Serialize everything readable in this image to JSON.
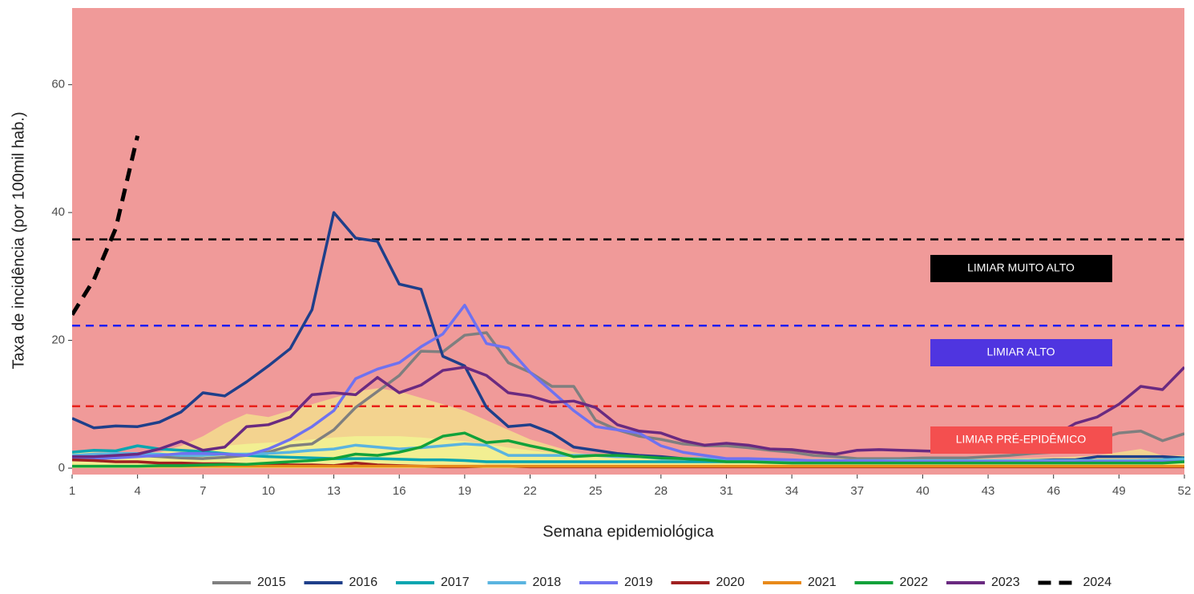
{
  "chart_data": {
    "type": "line",
    "xlabel": "Semana epidemiológica",
    "ylabel": "Taxa de incidência (por 100mil hab.)",
    "xlim": [
      1,
      52
    ],
    "ylim": [
      -1,
      72
    ],
    "xticks": [
      1,
      4,
      7,
      10,
      13,
      16,
      19,
      22,
      25,
      28,
      31,
      34,
      37,
      40,
      43,
      46,
      49,
      52
    ],
    "yticks": [
      0,
      20,
      40,
      60
    ],
    "background": "#f09a99",
    "x": [
      1,
      2,
      3,
      4,
      5,
      6,
      7,
      8,
      9,
      10,
      11,
      12,
      13,
      14,
      15,
      16,
      17,
      18,
      19,
      20,
      21,
      22,
      23,
      24,
      25,
      26,
      27,
      28,
      29,
      30,
      31,
      32,
      33,
      34,
      35,
      36,
      37,
      38,
      39,
      40,
      41,
      42,
      43,
      44,
      45,
      46,
      47,
      48,
      49,
      50,
      51,
      52
    ],
    "areas": [
      {
        "color": "#f3d38f",
        "values": [
          2,
          2,
          2,
          2.2,
          2.5,
          3.5,
          5,
          7,
          8.5,
          8,
          9,
          10,
          11,
          12,
          12.5,
          12,
          11,
          10,
          9,
          7.5,
          6,
          4.5,
          3.5,
          2.5,
          2,
          1.8,
          1.6,
          1.5,
          1.5,
          1.5,
          1.5,
          1.5,
          1.5,
          1.5,
          1.5,
          1.5,
          1.5,
          1.5,
          1.5,
          1.5,
          1.5,
          1.5,
          1.5,
          1.5,
          1.6,
          1.7,
          1.8,
          2,
          2.5,
          3,
          2,
          2
        ]
      },
      {
        "color": "#f2ef92",
        "values": [
          2.5,
          2.5,
          2.5,
          2.5,
          2.5,
          2.8,
          3,
          3.5,
          3.8,
          4,
          4.2,
          4.5,
          4.8,
          5,
          5,
          5,
          4.8,
          4.5,
          4.2,
          3.8,
          3.2,
          2.8,
          2.4,
          2,
          1.8,
          1.6,
          1.5,
          1.4,
          1.3,
          1.2,
          1.2,
          1.2,
          1.2,
          1.2,
          1.2,
          1.2,
          1.2,
          1.2,
          1.2,
          1.2,
          1.2,
          1.2,
          1.2,
          1.2,
          1.2,
          1.2,
          1.2,
          1.2,
          1.2,
          1.2,
          1.2,
          1.2
        ]
      }
    ],
    "thresholds": [
      {
        "label": "LIMIAR MUITO ALTO",
        "value": 35.8,
        "color": "#000000",
        "box_color": "#000000"
      },
      {
        "label": "LIMIAR ALTO",
        "value": 22.3,
        "color": "#1d1df2",
        "box_color": "#4f35e0"
      },
      {
        "label": "LIMIAR PRÉ-EPIDÊMICO",
        "value": 9.7,
        "color": "#e8201a",
        "box_color": "#f44f4f"
      }
    ],
    "series": [
      {
        "name": "2015",
        "color": "#7f7f7f",
        "values": [
          2,
          2,
          2,
          2,
          1.8,
          1.6,
          1.5,
          1.7,
          2,
          2.5,
          3.5,
          3.8,
          6,
          9.5,
          12,
          14.5,
          18.3,
          18.2,
          20.8,
          21.2,
          16.5,
          15,
          12.8,
          12.8,
          7.5,
          6,
          5,
          4.5,
          3.8,
          3.5,
          3.5,
          3.2,
          2.8,
          2.5,
          2,
          1.8,
          1.5,
          1.5,
          1.5,
          1.6,
          1.6,
          1.6,
          1.8,
          2,
          2.3,
          2.5,
          3,
          4.5,
          5.5,
          5.8,
          4.3,
          5.4
        ]
      },
      {
        "name": "2016",
        "color": "#1f3f8a",
        "values": [
          7.8,
          6.3,
          6.6,
          6.5,
          7.2,
          8.8,
          11.8,
          11.3,
          13.5,
          16,
          18.7,
          24.8,
          40,
          36,
          35.5,
          28.8,
          28,
          17.5,
          16,
          9.5,
          6.5,
          6.8,
          5.5,
          3.3,
          2.8,
          2.3,
          2,
          1.8,
          1.5,
          1.3,
          1.2,
          1.1,
          1,
          1,
          1,
          1,
          1,
          1,
          1,
          1,
          1,
          1,
          1,
          1,
          1.2,
          1.3,
          1.3,
          1.8,
          1.8,
          1.8,
          1.8,
          1.6
        ]
      },
      {
        "name": "2017",
        "color": "#0aa6b0",
        "values": [
          2.5,
          2.8,
          2.7,
          3.5,
          3,
          2.8,
          2.6,
          2.3,
          2,
          1.8,
          1.7,
          1.6,
          1.5,
          1.5,
          1.5,
          1.4,
          1.3,
          1.3,
          1.2,
          1,
          1,
          1,
          1,
          1,
          1,
          1,
          1,
          1,
          1,
          1,
          1,
          1,
          1,
          1,
          1,
          1,
          1,
          1,
          1,
          1,
          1,
          1,
          1,
          1,
          1,
          1,
          1,
          1,
          1,
          1.2,
          1.3,
          1.5
        ]
      },
      {
        "name": "2018",
        "color": "#5ab4e0",
        "values": [
          2,
          2.2,
          2.3,
          2.3,
          2.2,
          2,
          2,
          2.2,
          2.2,
          2.3,
          2.5,
          2.8,
          3,
          3.6,
          3.3,
          3,
          3.2,
          3.5,
          3.8,
          3.6,
          2,
          2,
          2,
          2,
          2,
          1.8,
          1.8,
          1.5,
          1.5,
          1.5,
          1.3,
          1.3,
          1.2,
          1.2,
          1.2,
          1.2,
          1.2,
          1.2,
          1.2,
          1.2,
          1.2,
          1.2,
          1.2,
          1.2,
          1.2,
          1.2,
          1.2,
          1.2,
          1.2,
          1.2,
          1.3,
          1.4
        ]
      },
      {
        "name": "2019",
        "color": "#6f72f0",
        "values": [
          1.5,
          1.5,
          1.6,
          1.8,
          2,
          2.3,
          2.3,
          2.2,
          2,
          3,
          4.5,
          6.5,
          9,
          14,
          15.5,
          16.5,
          19,
          21,
          25.5,
          19.5,
          18.8,
          15,
          12,
          9,
          6.5,
          6,
          5.5,
          3.5,
          2.5,
          2,
          1.5,
          1.5,
          1.4,
          1.3,
          1.2,
          1.2,
          1.1,
          1.1,
          1,
          1,
          1,
          1,
          1,
          1,
          1,
          1,
          1,
          1,
          1,
          1,
          1,
          1
        ]
      },
      {
        "name": "2020",
        "color": "#a02020",
        "values": [
          1.3,
          1.2,
          1,
          1,
          0.8,
          0.8,
          0.7,
          0.7,
          0.6,
          0.6,
          0.5,
          0.5,
          0.4,
          0.8,
          0.5,
          0.4,
          0.3,
          0.2,
          0.2,
          0.3,
          0.3,
          0.2,
          0.2,
          0.2,
          0.2,
          0.2,
          0.2,
          0.2,
          0.2,
          0.2,
          0.2,
          0.2,
          0.2,
          0.2,
          0.2,
          0.2,
          0.2,
          0.2,
          0.2,
          0.2,
          0.2,
          0.2,
          0.2,
          0.2,
          0.2,
          0.2,
          0.2,
          0.2,
          0.2,
          0.2,
          0.2,
          0.2
        ]
      },
      {
        "name": "2021",
        "color": "#e88a1a",
        "values": [
          0.3,
          0.3,
          0.3,
          0.3,
          0.3,
          0.3,
          0.3,
          0.3,
          0.3,
          0.3,
          0.3,
          0.3,
          0.3,
          0.3,
          0.3,
          0.3,
          0.3,
          0.3,
          0.3,
          0.3,
          0.3,
          0.3,
          0.3,
          0.3,
          0.3,
          0.3,
          0.3,
          0.3,
          0.3,
          0.3,
          0.3,
          0.3,
          0.3,
          0.3,
          0.3,
          0.3,
          0.3,
          0.3,
          0.3,
          0.3,
          0.3,
          0.3,
          0.3,
          0.3,
          0.3,
          0.3,
          0.3,
          0.3,
          0.3,
          0.3,
          0.3,
          0.3
        ]
      },
      {
        "name": "2022",
        "color": "#12a23a",
        "values": [
          0.3,
          0.3,
          0.3,
          0.3,
          0.4,
          0.4,
          0.5,
          0.6,
          0.6,
          0.8,
          1,
          1.2,
          1.5,
          2.2,
          2,
          2.5,
          3.3,
          5,
          5.5,
          4,
          4.3,
          3.5,
          2.8,
          1.8,
          2,
          2,
          1.8,
          1.6,
          1.5,
          1.3,
          1,
          1,
          0.9,
          0.8,
          0.8,
          0.8,
          0.8,
          0.8,
          0.8,
          0.8,
          0.8,
          0.8,
          0.8,
          0.8,
          0.8,
          0.8,
          0.8,
          0.8,
          0.8,
          0.8,
          0.8,
          1
        ]
      },
      {
        "name": "2023",
        "color": "#6a2a80",
        "values": [
          1.8,
          1.8,
          2,
          2.2,
          3,
          4.2,
          2.8,
          3.3,
          6.5,
          6.8,
          8,
          11.5,
          11.8,
          11.5,
          14.2,
          11.8,
          13,
          15.3,
          15.8,
          14.5,
          11.8,
          11.3,
          10.3,
          10.5,
          9.5,
          6.8,
          5.8,
          5.5,
          4.3,
          3.6,
          3.9,
          3.6,
          3,
          2.9,
          2.5,
          2.2,
          2.8,
          2.9,
          2.8,
          2.7,
          2.6,
          3,
          3.5,
          4,
          4.5,
          5,
          7,
          8,
          10,
          12.8,
          12.3,
          15.8
        ]
      },
      {
        "name": "2024",
        "color": "#000000",
        "dashed": true,
        "values": [
          24,
          29.5,
          37.5,
          52,
          null,
          null,
          null,
          null,
          null,
          null,
          null,
          null,
          null,
          null,
          null,
          null,
          null,
          null,
          null,
          null,
          null,
          null,
          null,
          null,
          null,
          null,
          null,
          null,
          null,
          null,
          null,
          null,
          null,
          null,
          null,
          null,
          null,
          null,
          null,
          null,
          null,
          null,
          null,
          null,
          null,
          null,
          null,
          null,
          null,
          null,
          null,
          null
        ]
      }
    ]
  }
}
